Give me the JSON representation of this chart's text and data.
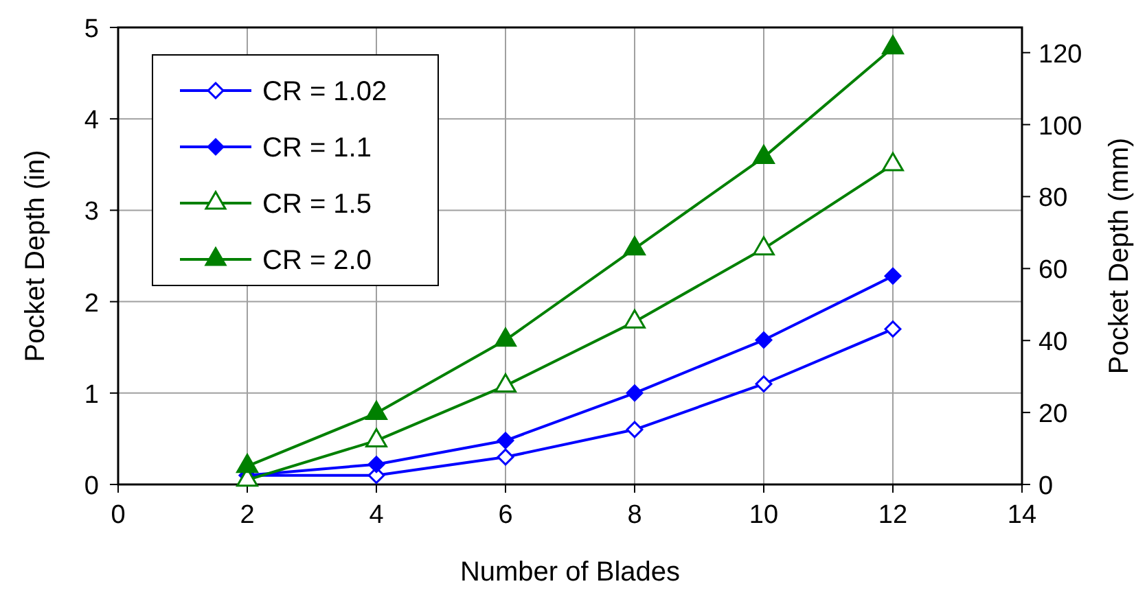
{
  "chart_data": {
    "type": "line",
    "xlabel": "Number of Blades",
    "ylabel": "Pocket Depth (in)",
    "y2label": "Pocket Depth (mm)",
    "x": [
      2,
      4,
      6,
      8,
      10,
      12
    ],
    "xlim": [
      0,
      14
    ],
    "xticks": [
      0,
      2,
      4,
      6,
      8,
      10,
      12,
      14
    ],
    "ylim": [
      0,
      5
    ],
    "yticks": [
      0,
      1,
      2,
      3,
      4,
      5
    ],
    "y2lim": [
      0,
      127
    ],
    "y2ticks": [
      0,
      20,
      40,
      60,
      80,
      100,
      120
    ],
    "grid": true,
    "legend": "top left",
    "line_style": "solid",
    "series": [
      {
        "name": "CR = 1.02",
        "color": "#0000ff",
        "marker": "diamond",
        "values": [
          0.1,
          0.1,
          0.3,
          0.6,
          1.1,
          1.7
        ]
      },
      {
        "name": "CR = 1.1",
        "color": "#0000ff",
        "marker": "diamond",
        "values": [
          0.1,
          0.22,
          0.48,
          1.0,
          1.58,
          2.28
        ]
      },
      {
        "name": "CR = 1.5",
        "color": "#008000",
        "marker": "triangle",
        "values": [
          0.05,
          0.48,
          1.08,
          1.78,
          2.58,
          3.5
        ]
      },
      {
        "name": "CR = 2.0",
        "color": "#008000",
        "marker": "triangle",
        "values": [
          0.2,
          0.78,
          1.58,
          2.58,
          3.58,
          4.78
        ]
      }
    ]
  }
}
